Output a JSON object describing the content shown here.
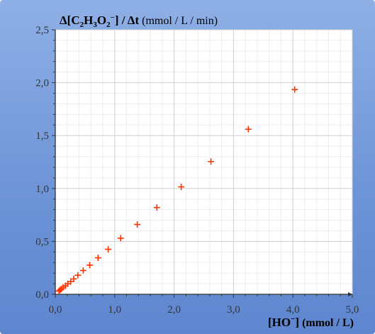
{
  "chart_data": {
    "type": "scatter",
    "ylabel": {
      "prefix": "Δ[C",
      "s1": "2",
      "h": "H",
      "s2": "3",
      "o": "O",
      "s3": "2",
      "sup": "−",
      "close": "] / Δt",
      "unit": " (mmol / L / min)"
    },
    "xlabel": {
      "open": "[HO",
      "sup": "−",
      "close": "]",
      "unit": " (mmol / L)"
    },
    "xlim": [
      0,
      5
    ],
    "ylim": [
      0,
      2.5
    ],
    "x_ticks": [
      "0,0",
      "1,0",
      "2,0",
      "3,0",
      "4,0",
      "5,0"
    ],
    "y_ticks": [
      "0,0",
      "0,5",
      "1,0",
      "1,5",
      "2,0",
      "2,5"
    ],
    "grid": true,
    "marker": "+",
    "marker_color": "#ff3300",
    "points": [
      {
        "x": 0.06,
        "y": 0.03
      },
      {
        "x": 0.08,
        "y": 0.04
      },
      {
        "x": 0.1,
        "y": 0.05
      },
      {
        "x": 0.13,
        "y": 0.065
      },
      {
        "x": 0.17,
        "y": 0.08
      },
      {
        "x": 0.21,
        "y": 0.1
      },
      {
        "x": 0.26,
        "y": 0.12
      },
      {
        "x": 0.31,
        "y": 0.145
      },
      {
        "x": 0.38,
        "y": 0.18
      },
      {
        "x": 0.47,
        "y": 0.225
      },
      {
        "x": 0.58,
        "y": 0.275
      },
      {
        "x": 0.72,
        "y": 0.345
      },
      {
        "x": 0.89,
        "y": 0.425
      },
      {
        "x": 1.1,
        "y": 0.53
      },
      {
        "x": 1.38,
        "y": 0.66
      },
      {
        "x": 1.71,
        "y": 0.82
      },
      {
        "x": 2.12,
        "y": 1.015
      },
      {
        "x": 2.62,
        "y": 1.255
      },
      {
        "x": 3.25,
        "y": 1.56
      },
      {
        "x": 4.03,
        "y": 1.935
      }
    ]
  }
}
